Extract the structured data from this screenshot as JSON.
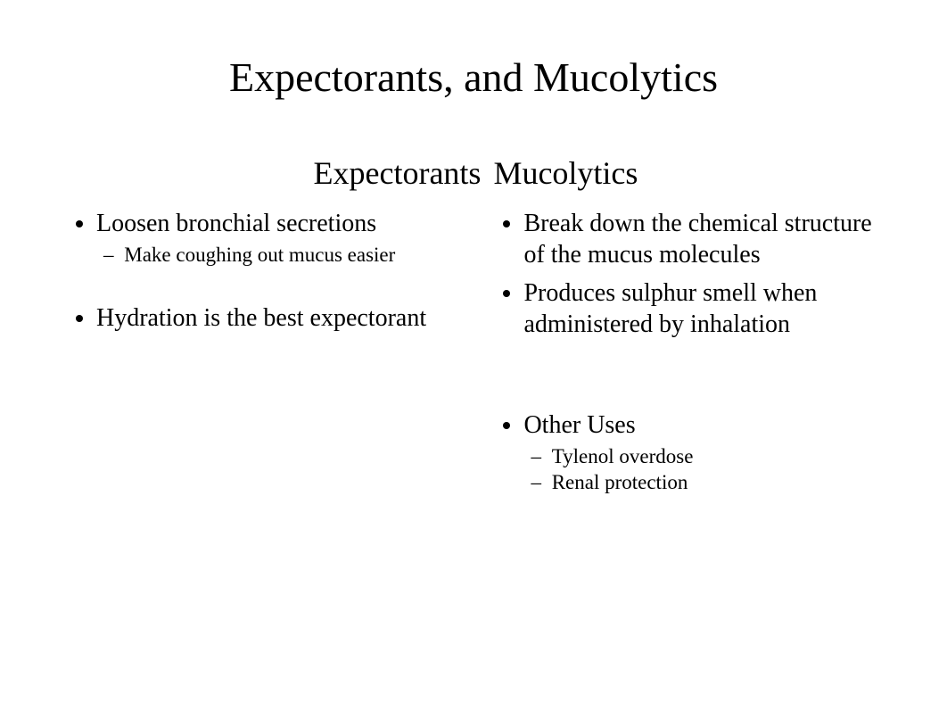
{
  "title": "Expectorants, and Mucolytics",
  "left": {
    "heading": "Expectorants",
    "items": [
      {
        "text": "Loosen bronchial secretions",
        "sub": [
          "Make coughing out mucus easier"
        ]
      },
      {
        "text": "Hydration is the best expectorant",
        "sub": []
      }
    ]
  },
  "right": {
    "heading": "Mucolytics",
    "items": [
      {
        "text": "Break down the chemical structure of the mucus molecules",
        "sub": []
      },
      {
        "text": "Produces sulphur smell when administered by inhalation",
        "sub": []
      },
      {
        "text": "Other Uses",
        "sub": [
          "Tylenol overdose",
          "Renal protection"
        ]
      }
    ]
  },
  "style": {
    "background": "#ffffff",
    "text_color": "#000000",
    "font_family": "Times New Roman",
    "title_fontsize": 46,
    "subhead_fontsize": 36,
    "body_fontsize": 28,
    "sub_fontsize": 23
  }
}
